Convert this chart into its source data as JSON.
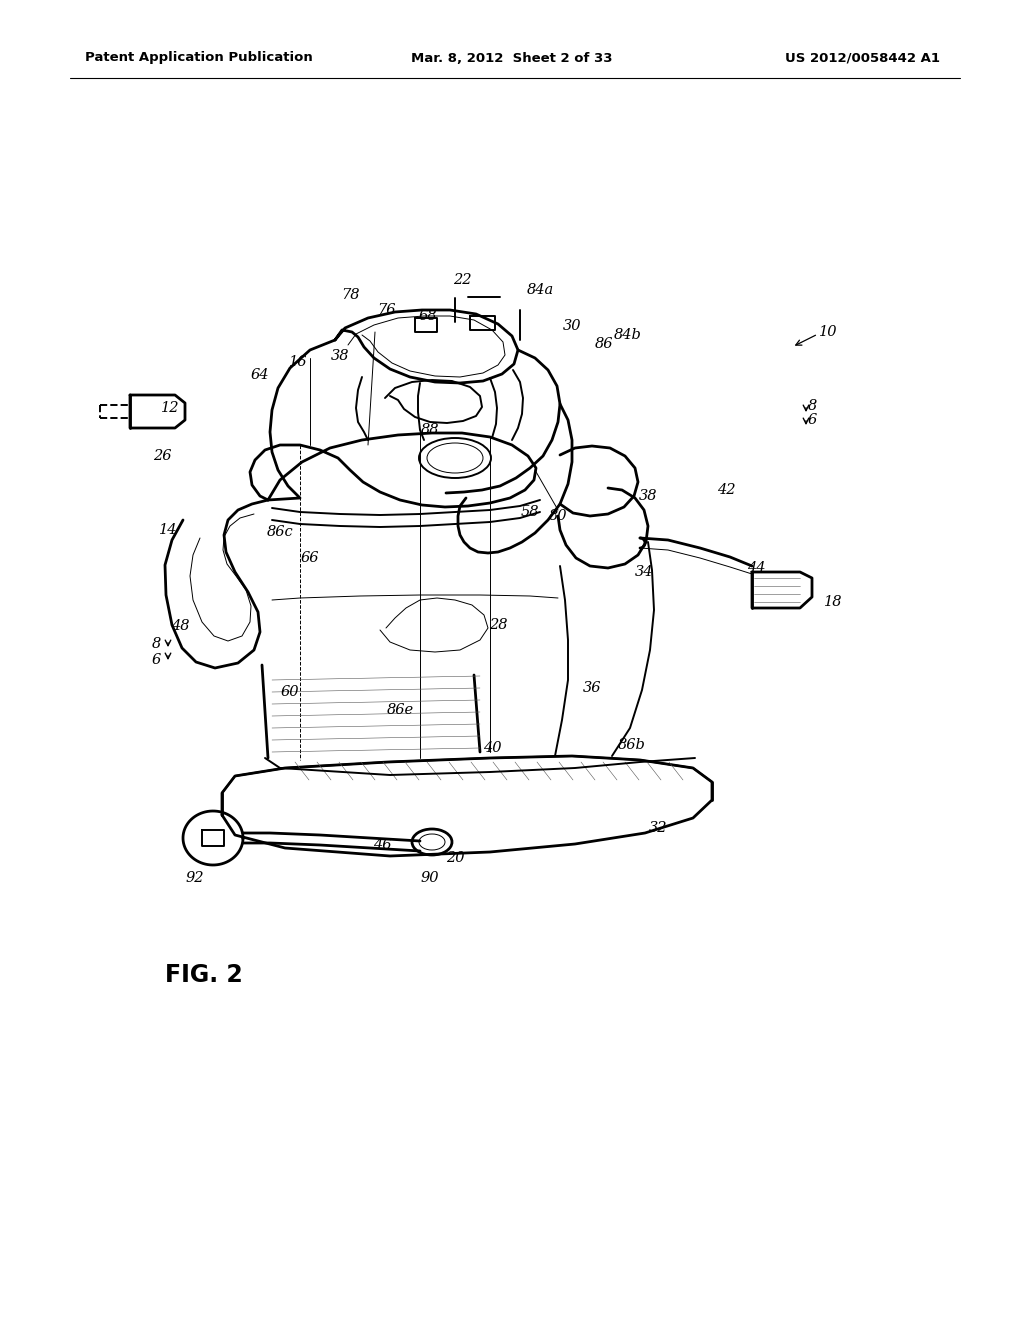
{
  "bg_color": "#ffffff",
  "line_color": "#000000",
  "header_left": "Patent Application Publication",
  "header_center": "Mar. 8, 2012  Sheet 2 of 33",
  "header_right": "US 2012/0058442 A1",
  "fig_label": "FIG. 2",
  "lw_thick": 2.0,
  "lw_main": 1.4,
  "lw_thin": 0.7,
  "lw_hair": 0.4,
  "ref_fontsize": 10.5,
  "header_fontsize": 9.5,
  "fig_label_fontsize": 17
}
